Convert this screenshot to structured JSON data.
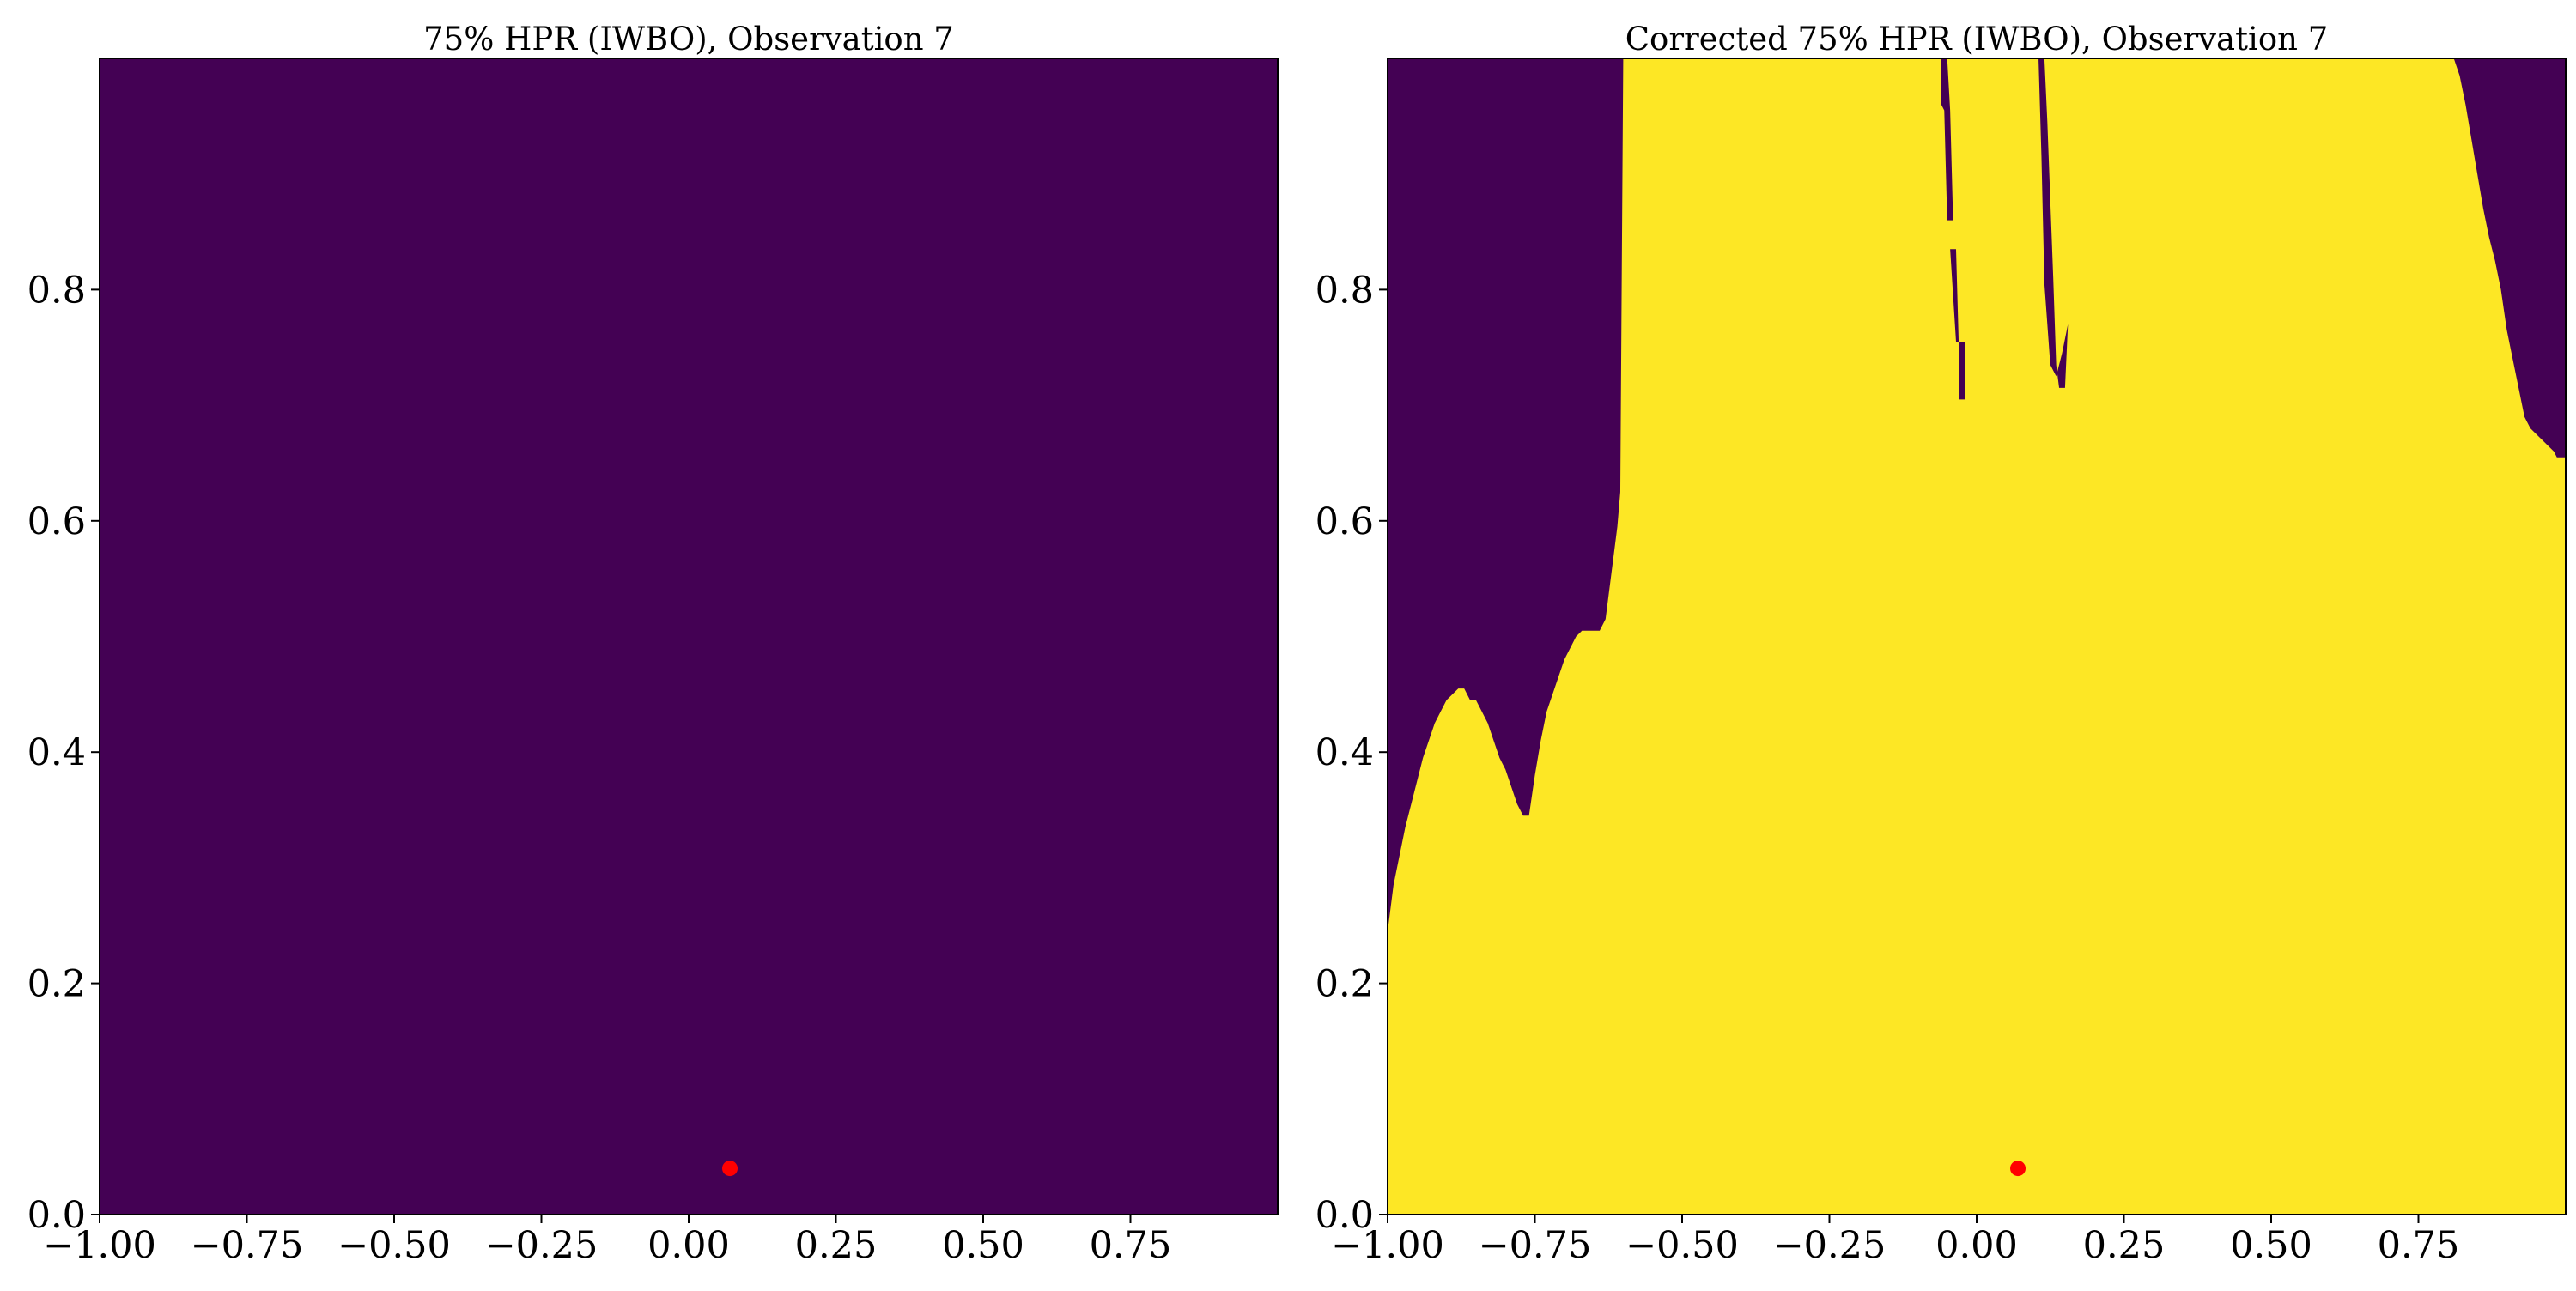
{
  "chart_data": [
    {
      "type": "heatmap",
      "title": "75% HPR (IWBO), Observation 7",
      "xlim": [
        -1.0,
        1.0
      ],
      "ylim": [
        0.0,
        1.0
      ],
      "xticks": [
        "−1.00",
        "−0.75",
        "−0.50",
        "−0.25",
        "0.00",
        "0.25",
        "0.50",
        "0.75"
      ],
      "xtick_values": [
        -1.0,
        -0.75,
        -0.5,
        -0.25,
        0.0,
        0.25,
        0.5,
        0.75
      ],
      "yticks": [
        "0.0",
        "0.2",
        "0.4",
        "0.6",
        "0.8"
      ],
      "ytick_values": [
        0.0,
        0.2,
        0.4,
        0.6,
        0.8
      ],
      "colors": {
        "outside": "#440154",
        "inside": "#fde725",
        "observation": "#ff0000"
      },
      "region": "none",
      "observation_point": {
        "x": 0.07,
        "y": 0.04
      }
    },
    {
      "type": "heatmap",
      "title": "Corrected 75% HPR (IWBO), Observation 7",
      "xlim": [
        -1.0,
        1.0
      ],
      "ylim": [
        0.0,
        1.0
      ],
      "xticks": [
        "−1.00",
        "−0.75",
        "−0.50",
        "−0.25",
        "0.00",
        "0.25",
        "0.50",
        "0.75"
      ],
      "xtick_values": [
        -1.0,
        -0.75,
        -0.5,
        -0.25,
        0.0,
        0.25,
        0.5,
        0.75
      ],
      "yticks": [
        "0.0",
        "0.2",
        "0.4",
        "0.6",
        "0.8"
      ],
      "ytick_values": [
        0.0,
        0.2,
        0.4,
        0.6,
        0.8
      ],
      "colors": {
        "outside": "#440154",
        "inside": "#fde725",
        "observation": "#ff0000"
      },
      "region": "boundary",
      "boundary": [
        [
          -1.0,
          0.245
        ],
        [
          -0.99,
          0.285
        ],
        [
          -0.98,
          0.31
        ],
        [
          -0.97,
          0.335
        ],
        [
          -0.96,
          0.355
        ],
        [
          -0.95,
          0.375
        ],
        [
          -0.94,
          0.395
        ],
        [
          -0.93,
          0.41
        ],
        [
          -0.92,
          0.425
        ],
        [
          -0.91,
          0.435
        ],
        [
          -0.9,
          0.445
        ],
        [
          -0.89,
          0.45
        ],
        [
          -0.88,
          0.455
        ],
        [
          -0.87,
          0.455
        ],
        [
          -0.86,
          0.445
        ],
        [
          -0.85,
          0.445
        ],
        [
          -0.84,
          0.435
        ],
        [
          -0.83,
          0.425
        ],
        [
          -0.82,
          0.41
        ],
        [
          -0.81,
          0.395
        ],
        [
          -0.8,
          0.385
        ],
        [
          -0.79,
          0.37
        ],
        [
          -0.78,
          0.355
        ],
        [
          -0.77,
          0.345
        ],
        [
          -0.76,
          0.345
        ],
        [
          -0.75,
          0.38
        ],
        [
          -0.74,
          0.41
        ],
        [
          -0.73,
          0.435
        ],
        [
          -0.72,
          0.45
        ],
        [
          -0.71,
          0.465
        ],
        [
          -0.7,
          0.48
        ],
        [
          -0.69,
          0.49
        ],
        [
          -0.68,
          0.5
        ],
        [
          -0.67,
          0.505
        ],
        [
          -0.66,
          0.505
        ],
        [
          -0.65,
          0.505
        ],
        [
          -0.64,
          0.505
        ],
        [
          -0.63,
          0.515
        ],
        [
          -0.62,
          0.555
        ],
        [
          -0.61,
          0.595
        ],
        [
          -0.605,
          0.625
        ],
        [
          -0.6,
          1.0
        ],
        [
          0.81,
          1.0
        ],
        [
          0.82,
          0.985
        ],
        [
          0.83,
          0.96
        ],
        [
          0.84,
          0.93
        ],
        [
          0.85,
          0.9
        ],
        [
          0.86,
          0.87
        ],
        [
          0.87,
          0.845
        ],
        [
          0.88,
          0.825
        ],
        [
          0.89,
          0.8
        ],
        [
          0.9,
          0.765
        ],
        [
          0.91,
          0.74
        ],
        [
          0.92,
          0.715
        ],
        [
          0.93,
          0.69
        ],
        [
          0.94,
          0.68
        ],
        [
          0.95,
          0.675
        ],
        [
          0.96,
          0.67
        ],
        [
          0.97,
          0.665
        ],
        [
          0.98,
          0.66
        ],
        [
          0.985,
          0.655
        ],
        [
          1.0,
          0.655
        ]
      ],
      "holes": [
        [
          [
            -0.06,
            1.0
          ],
          [
            -0.05,
            1.0
          ],
          [
            -0.045,
            0.955
          ],
          [
            -0.04,
            0.86
          ],
          [
            -0.05,
            0.86
          ],
          [
            -0.055,
            0.955
          ],
          [
            -0.06,
            0.96
          ]
        ],
        [
          [
            -0.045,
            0.835
          ],
          [
            -0.035,
            0.835
          ],
          [
            -0.03,
            0.745
          ],
          [
            -0.03,
            0.705
          ],
          [
            -0.02,
            0.705
          ],
          [
            -0.02,
            0.755
          ],
          [
            -0.035,
            0.755
          ]
        ],
        [
          [
            0.105,
            1.0
          ],
          [
            0.115,
            1.0
          ],
          [
            0.12,
            0.945
          ],
          [
            0.13,
            0.81
          ],
          [
            0.135,
            0.735
          ],
          [
            0.14,
            0.715
          ],
          [
            0.15,
            0.715
          ],
          [
            0.155,
            0.77
          ],
          [
            0.145,
            0.745
          ],
          [
            0.135,
            0.725
          ],
          [
            0.125,
            0.735
          ],
          [
            0.115,
            0.805
          ],
          [
            0.11,
            0.915
          ]
        ]
      ],
      "observation_point": {
        "x": 0.07,
        "y": 0.04
      }
    }
  ]
}
